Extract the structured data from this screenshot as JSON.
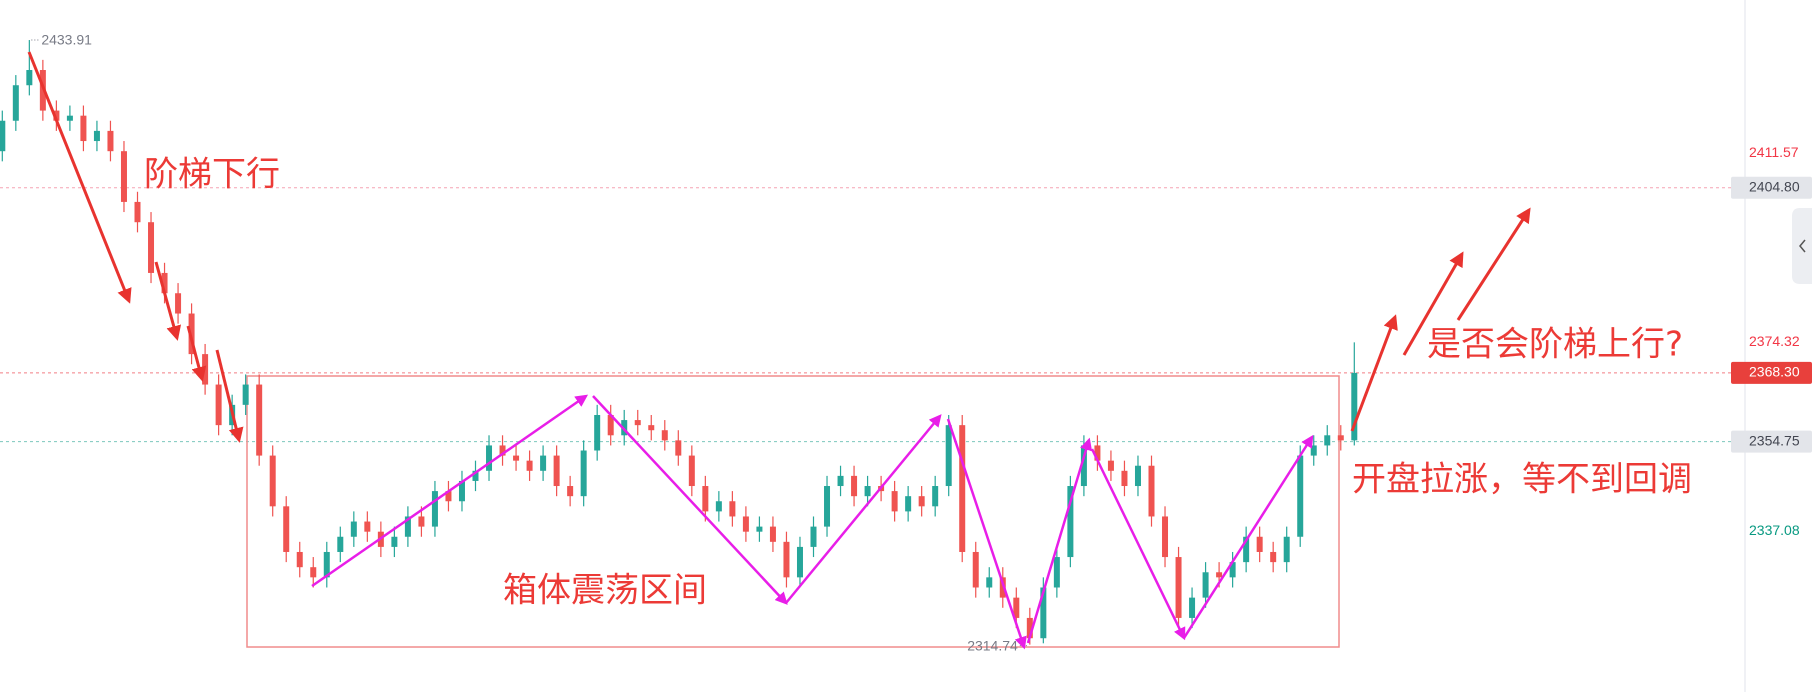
{
  "chart_data": {
    "type": "candlestick",
    "up_color": "#26a69a",
    "down_color": "#ef5350",
    "ylim": [
      2305.4,
      2441.8
    ],
    "open": [
      2412,
      2418,
      2425,
      2428,
      2420,
      2418,
      2419,
      2414,
      2416,
      2412,
      2402,
      2398,
      2388,
      2384,
      2380,
      2372,
      2366,
      2358,
      2362,
      2366,
      2352,
      2342,
      2333,
      2330,
      2328,
      2333,
      2336,
      2339,
      2337,
      2334,
      2336,
      2340,
      2338,
      2345,
      2343,
      2347,
      2349,
      2354,
      2352,
      2351,
      2349,
      2352,
      2346,
      2344,
      2353,
      2360,
      2356,
      2359,
      2358,
      2357,
      2355,
      2352,
      2346,
      2341,
      2343,
      2340,
      2337,
      2338,
      2335,
      2328,
      2334,
      2338,
      2346,
      2348,
      2344,
      2346,
      2345,
      2341,
      2344,
      2342,
      2346,
      2358,
      2333,
      2326,
      2328,
      2324,
      2320,
      2316,
      2326,
      2332,
      2346,
      2354,
      2351,
      2349,
      2346,
      2350,
      2340,
      2332,
      2320,
      2324,
      2329,
      2328,
      2331,
      2336,
      2333,
      2331,
      2336,
      2352,
      2354,
      2356,
      2355
    ],
    "high": [
      2420,
      2427,
      2433.91,
      2430,
      2422,
      2421,
      2421,
      2418,
      2418,
      2414,
      2404,
      2400,
      2390,
      2386,
      2382,
      2374,
      2368,
      2364,
      2368,
      2368,
      2354,
      2344,
      2335,
      2332,
      2335,
      2338,
      2341,
      2341,
      2339,
      2338,
      2342,
      2342,
      2347,
      2347,
      2349,
      2351,
      2356,
      2356,
      2354,
      2353,
      2354,
      2354,
      2348,
      2355,
      2362,
      2362,
      2361,
      2361,
      2360,
      2359,
      2357,
      2354,
      2348,
      2345,
      2345,
      2342,
      2340,
      2340,
      2337,
      2336,
      2340,
      2348,
      2350,
      2350,
      2348,
      2348,
      2347,
      2346,
      2346,
      2348,
      2360,
      2360,
      2335,
      2330,
      2330,
      2326,
      2322,
      2328,
      2334,
      2348,
      2356,
      2356,
      2353,
      2351,
      2352,
      2352,
      2342,
      2334,
      2326,
      2331,
      2331,
      2333,
      2338,
      2338,
      2335,
      2338,
      2354,
      2356,
      2358,
      2358,
      2374.32
    ],
    "low": [
      2410,
      2416,
      2423,
      2418,
      2416,
      2416,
      2412,
      2412,
      2410,
      2400,
      2396,
      2386,
      2382,
      2378,
      2370,
      2364,
      2356,
      2356,
      2360,
      2350,
      2340,
      2331,
      2328,
      2326,
      2326,
      2331,
      2334,
      2335,
      2332,
      2332,
      2334,
      2336,
      2336,
      2341,
      2341,
      2345,
      2347,
      2350,
      2349,
      2347,
      2347,
      2344,
      2342,
      2342,
      2351,
      2354,
      2354,
      2356,
      2355,
      2353,
      2350,
      2344,
      2339,
      2339,
      2338,
      2335,
      2335,
      2333,
      2326,
      2326,
      2332,
      2336,
      2344,
      2342,
      2342,
      2343,
      2339,
      2339,
      2340,
      2340,
      2344,
      2331,
      2324,
      2324,
      2322,
      2318,
      2314.74,
      2315,
      2324,
      2330,
      2344,
      2349,
      2347,
      2344,
      2344,
      2338,
      2330,
      2318,
      2318,
      2322,
      2326,
      2326,
      2329,
      2331,
      2329,
      2329,
      2334,
      2350,
      2352,
      2353,
      2354
    ],
    "close": [
      2418,
      2425,
      2428,
      2420,
      2418,
      2419,
      2414,
      2416,
      2412,
      2402,
      2398,
      2388,
      2384,
      2380,
      2372,
      2366,
      2358,
      2362,
      2366,
      2352,
      2342,
      2333,
      2330,
      2328,
      2333,
      2336,
      2339,
      2337,
      2334,
      2336,
      2340,
      2338,
      2345,
      2343,
      2347,
      2349,
      2354,
      2352,
      2351,
      2349,
      2352,
      2346,
      2344,
      2353,
      2360,
      2356,
      2359,
      2358,
      2357,
      2355,
      2352,
      2346,
      2341,
      2343,
      2340,
      2337,
      2338,
      2335,
      2328,
      2334,
      2338,
      2346,
      2348,
      2344,
      2346,
      2345,
      2341,
      2344,
      2342,
      2346,
      2358,
      2333,
      2326,
      2328,
      2324,
      2320,
      2316,
      2326,
      2332,
      2346,
      2354,
      2351,
      2349,
      2346,
      2350,
      2340,
      2332,
      2320,
      2324,
      2329,
      2328,
      2331,
      2336,
      2333,
      2331,
      2336,
      2352,
      2354,
      2356,
      2355,
      2368.3
    ],
    "price_labels": [
      {
        "value": 2411.57,
        "color": "#f23645"
      },
      {
        "value": 2404.8,
        "label": "2404.80",
        "color": "#434651",
        "background": "#e3e5ea",
        "line_color": "#f5a3b4"
      },
      {
        "value": 2374.32,
        "color": "#f23645"
      },
      {
        "value": 2368.3,
        "label": "2368.30",
        "color": "#ffffff",
        "background": "#e8403c",
        "line_color": "#f27d85"
      },
      {
        "value": 2354.75,
        "color": "#434651",
        "background": "#e3e5ea",
        "line_color": "#7cc7bd"
      },
      {
        "value": 2337.08,
        "color": "#089981"
      }
    ],
    "annotations": [
      "阶梯下行",
      "箱体震荡区间",
      "是否会阶梯上行?",
      "开盘拉涨，等不到回调"
    ]
  }
}
